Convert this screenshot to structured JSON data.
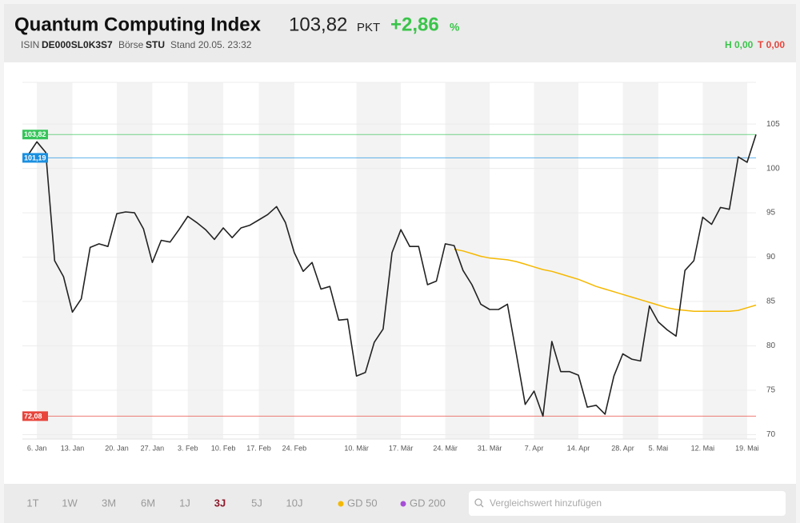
{
  "header": {
    "title": "Quantum Computing Index",
    "price": "103,82",
    "unit": "PKT",
    "change": "+2,86",
    "change_unit": "%",
    "isin_label": "ISIN",
    "isin": "DE000SL0K3S7",
    "exchange_label": "Börse",
    "exchange": "STU",
    "timestamp": "Stand 20.05. 23:32",
    "high": "H 0,00",
    "low": "T 0,00"
  },
  "chart_data": {
    "type": "line",
    "categories": [
      null,
      "6. Jan",
      null,
      null,
      null,
      "13. Jan",
      null,
      null,
      null,
      null,
      "20. Jan",
      null,
      null,
      null,
      "27. Jan",
      null,
      null,
      null,
      "3. Feb",
      null,
      null,
      null,
      "10. Feb",
      null,
      null,
      null,
      "17. Feb",
      null,
      null,
      null,
      "24. Feb",
      null,
      null,
      null,
      null,
      null,
      null,
      "10. Mär",
      null,
      null,
      null,
      null,
      "17. Mär",
      null,
      null,
      null,
      null,
      "24. Mär",
      null,
      null,
      null,
      null,
      "31. Mär",
      null,
      null,
      null,
      null,
      "7. Apr",
      null,
      null,
      null,
      null,
      "14. Apr",
      null,
      null,
      null,
      null,
      "28. Apr",
      null,
      null,
      null,
      "5. Mai",
      null,
      null,
      null,
      null,
      "12. Mai",
      null,
      null,
      null,
      null,
      "19. Mai",
      null
    ],
    "series": [
      {
        "color": "#222222",
        "values": [
          101.5,
          103.0,
          101.8,
          89.6,
          87.8,
          83.8,
          85.3,
          91.1,
          91.5,
          91.2,
          94.9,
          95.1,
          95.0,
          93.2,
          89.4,
          91.9,
          91.7,
          93.1,
          94.6,
          93.9,
          93.1,
          92.0,
          93.3,
          92.2,
          93.3,
          93.6,
          94.2,
          94.8,
          95.7,
          93.9,
          90.5,
          88.4,
          89.4,
          86.4,
          86.7,
          82.9,
          83.0,
          76.6,
          77.0,
          80.4,
          81.9,
          90.5,
          93.1,
          91.2,
          91.2,
          86.9,
          87.3,
          91.5,
          91.3,
          88.5,
          86.9,
          84.7,
          84.1,
          84.1,
          84.7,
          79.1,
          73.4,
          74.9,
          72.08,
          80.5,
          77.1,
          77.1,
          76.7,
          73.1,
          73.3,
          72.3,
          76.6,
          79.1,
          78.5,
          78.3,
          84.5,
          82.7,
          81.8,
          81.1,
          88.5,
          89.6,
          94.5,
          93.7,
          95.6,
          95.4,
          101.3,
          100.7,
          103.82
        ]
      },
      {
        "name": "GD 50",
        "color": "#f5b800",
        "values": [
          null,
          null,
          null,
          null,
          null,
          null,
          null,
          null,
          null,
          null,
          null,
          null,
          null,
          null,
          null,
          null,
          null,
          null,
          null,
          null,
          null,
          null,
          null,
          null,
          null,
          null,
          null,
          null,
          null,
          null,
          null,
          null,
          null,
          null,
          null,
          null,
          null,
          null,
          null,
          null,
          null,
          null,
          null,
          null,
          null,
          null,
          null,
          null,
          90.9,
          90.7,
          90.4,
          90.1,
          89.9,
          89.8,
          89.7,
          89.5,
          89.2,
          88.9,
          88.6,
          88.4,
          88.1,
          87.8,
          87.5,
          87.1,
          86.7,
          86.4,
          86.1,
          85.8,
          85.5,
          85.2,
          84.9,
          84.6,
          84.3,
          84.1,
          84.0,
          83.9,
          83.9,
          83.9,
          83.9,
          83.9,
          84.0,
          84.3,
          84.6
        ]
      }
    ],
    "reference_lines": [
      {
        "value": 103.82,
        "label": "103,82",
        "color": "#36c45a"
      },
      {
        "value": 101.19,
        "label": "101,19",
        "color": "#1a8fe0"
      },
      {
        "value": 72.08,
        "label": "72,08",
        "color": "#e8453c"
      }
    ],
    "ylim": [
      69.5,
      109.7
    ],
    "yticks": [
      70,
      75,
      80,
      85,
      90,
      95,
      100,
      105
    ],
    "grid": true
  },
  "footer": {
    "ranges": [
      "1T",
      "1W",
      "3M",
      "6M",
      "1J",
      "3J",
      "5J",
      "10J"
    ],
    "active_range": "3J",
    "indicator": {
      "name": "GD 200",
      "color": "#a64fd6"
    },
    "search_placeholder": "Vergleichswert hinzufügen"
  }
}
